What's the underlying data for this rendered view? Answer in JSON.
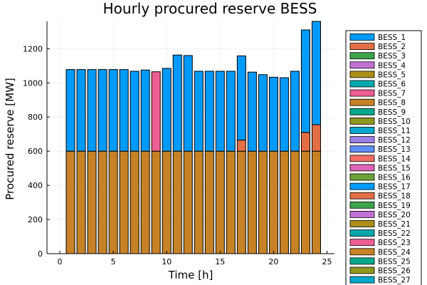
{
  "chart_data": {
    "type": "bar",
    "stacked": true,
    "title": "Hourly procured reserve BESS",
    "xlabel": "Time [h]",
    "ylabel": "Procured reserve [MW]",
    "xlim": [
      -1.2,
      25.7
    ],
    "ylim": [
      0,
      1360
    ],
    "xticks": [
      0,
      5,
      10,
      15,
      20,
      25
    ],
    "yticks": [
      0,
      200,
      400,
      600,
      800,
      1000,
      1200
    ],
    "grid": true,
    "legend_position": "right",
    "x": [
      1,
      2,
      3,
      4,
      5,
      6,
      7,
      8,
      9,
      10,
      11,
      12,
      13,
      14,
      15,
      16,
      17,
      18,
      19,
      20,
      21,
      22,
      23,
      24
    ],
    "colors": {
      "BESS_1": "#009af9",
      "BESS_2": "#e26f46",
      "BESS_3": "#3da44d",
      "BESS_4": "#c271d2",
      "BESS_5": "#ac8e18",
      "BESS_6": "#00a9ad",
      "BESS_7": "#ed5e93",
      "BESS_8": "#c68225",
      "BESS_9": "#00a98d",
      "BESS_10": "#8e971e",
      "BESS_11": "#00a8cb",
      "BESS_12": "#9b7fe8",
      "BESS_13": "#618df6",
      "BESS_14": "#f16c62",
      "BESS_15": "#dd65b6",
      "BESS_16": "#6aa238",
      "BESS_17": "#009af9",
      "BESS_18": "#e26f46",
      "BESS_19": "#3da44d",
      "BESS_20": "#c271d2",
      "BESS_21": "#ac8e18",
      "BESS_22": "#00a9ad",
      "BESS_23": "#ed5e93",
      "BESS_24": "#c68225",
      "BESS_25": "#00a98d",
      "BESS_26": "#8e971e",
      "BESS_27": "#00a8cb"
    },
    "legend": [
      "BESS_1",
      "BESS_2",
      "BESS_3",
      "BESS_4",
      "BESS_5",
      "BESS_6",
      "BESS_7",
      "BESS_8",
      "BESS_9",
      "BESS_10",
      "BESS_11",
      "BESS_12",
      "BESS_13",
      "BESS_14",
      "BESS_15",
      "BESS_16",
      "BESS_17",
      "BESS_18",
      "BESS_19",
      "BESS_20",
      "BESS_21",
      "BESS_22",
      "BESS_23",
      "BESS_24",
      "BESS_25",
      "BESS_26",
      "BESS_27"
    ],
    "series": [
      {
        "name": "BESS_8",
        "values": [
          600,
          600,
          600,
          600,
          600,
          600,
          600,
          600,
          600,
          600,
          600,
          600,
          600,
          600,
          600,
          600,
          600,
          600,
          600,
          600,
          600,
          600,
          600,
          600
        ]
      },
      {
        "name": "BESS_2",
        "values": [
          0,
          0,
          0,
          0,
          0,
          0,
          0,
          0,
          0,
          0,
          0,
          0,
          0,
          0,
          0,
          0,
          65,
          0,
          0,
          0,
          0,
          0,
          110,
          155
        ]
      },
      {
        "name": "BESS_7",
        "values": [
          0,
          0,
          0,
          0,
          0,
          0,
          0,
          0,
          465,
          0,
          0,
          0,
          0,
          0,
          0,
          0,
          0,
          0,
          0,
          0,
          0,
          0,
          0,
          0
        ]
      },
      {
        "name": "BESS_1",
        "values": [
          478,
          478,
          478,
          478,
          478,
          478,
          468,
          475,
          0,
          485,
          563,
          560,
          468,
          468,
          468,
          468,
          493,
          463,
          448,
          433,
          430,
          468,
          600,
          605
        ]
      }
    ]
  }
}
